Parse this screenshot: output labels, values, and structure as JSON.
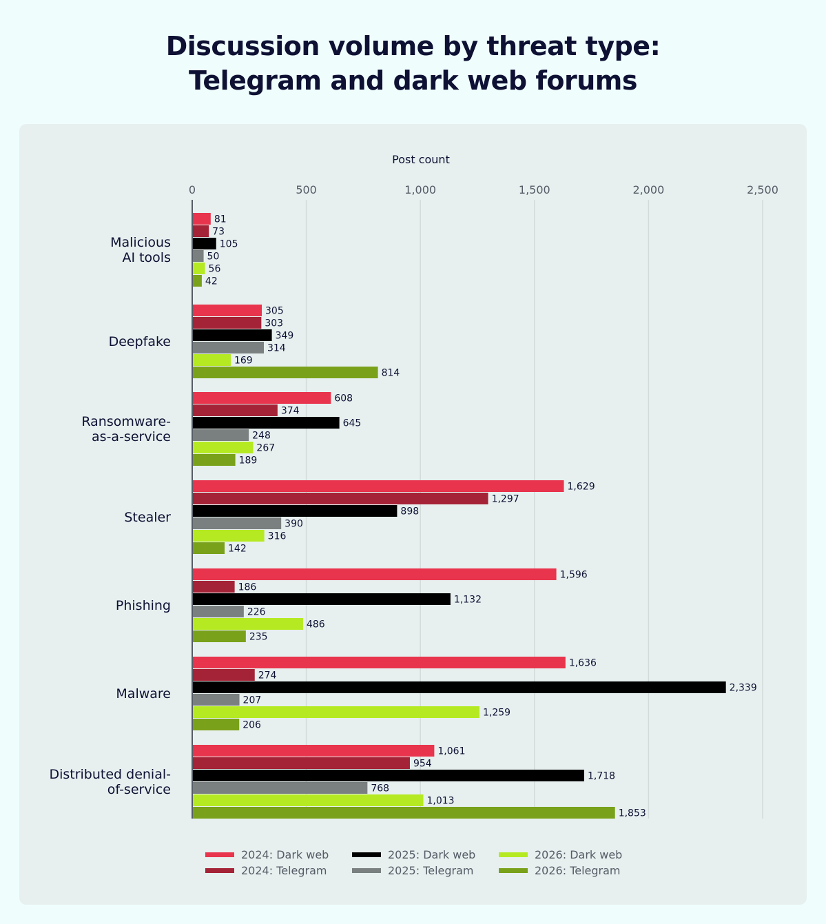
{
  "title": {
    "line1": "Discussion volume by threat type:",
    "line2": "Telegram and dark web forums"
  },
  "chart_data": {
    "type": "bar",
    "orientation": "horizontal",
    "xlabel": "Post count",
    "xlim": [
      0,
      2500
    ],
    "xticks": [
      0,
      500,
      1000,
      1500,
      2000,
      2500
    ],
    "xtick_labels": [
      "0",
      "500",
      "1,000",
      "1,500",
      "2,000",
      "2,500"
    ],
    "grid": true,
    "legend_position": "bottom",
    "categories": [
      [
        "Malicious",
        "AI tools"
      ],
      [
        "Deepfake"
      ],
      [
        "Ransomware-",
        "as-a-service"
      ],
      [
        "Stealer"
      ],
      [
        "Phishing"
      ],
      [
        "Malware"
      ],
      [
        "Distributed denial-",
        "of-service"
      ]
    ],
    "series": [
      {
        "name": "2024: Dark web",
        "color": "#e8344c",
        "values": [
          81,
          305,
          608,
          1629,
          1596,
          1636,
          1061
        ],
        "labels": [
          "81",
          "305",
          "608",
          "1,629",
          "1,596",
          "1,636",
          "1,061"
        ]
      },
      {
        "name": "2024: Telegram",
        "color": "#a52336",
        "values": [
          73,
          303,
          374,
          1297,
          186,
          274,
          954
        ],
        "labels": [
          "73",
          "303",
          "374",
          "1,297",
          "186",
          "274",
          "954"
        ]
      },
      {
        "name": "2025: Dark web",
        "color": "#000000",
        "values": [
          105,
          349,
          645,
          898,
          1132,
          2339,
          1718
        ],
        "labels": [
          "105",
          "349",
          "645",
          "898",
          "1,132",
          "2,339",
          "1,718"
        ]
      },
      {
        "name": "2025: Telegram",
        "color": "#7a7f80",
        "values": [
          50,
          314,
          248,
          390,
          226,
          207,
          768
        ],
        "labels": [
          "50",
          "314",
          "248",
          "390",
          "226",
          "207",
          "768"
        ]
      },
      {
        "name": "2026: Dark web",
        "color": "#b5ea22",
        "values": [
          56,
          169,
          267,
          316,
          486,
          1259,
          1013
        ],
        "labels": [
          "56",
          "169",
          "267",
          "316",
          "486",
          "1,259",
          "1,013"
        ]
      },
      {
        "name": "2026: Telegram",
        "color": "#7aa11a",
        "values": [
          42,
          814,
          189,
          142,
          235,
          206,
          1853
        ],
        "labels": [
          "42",
          "814",
          "189",
          "142",
          "235",
          "206",
          "1,853"
        ]
      }
    ]
  }
}
